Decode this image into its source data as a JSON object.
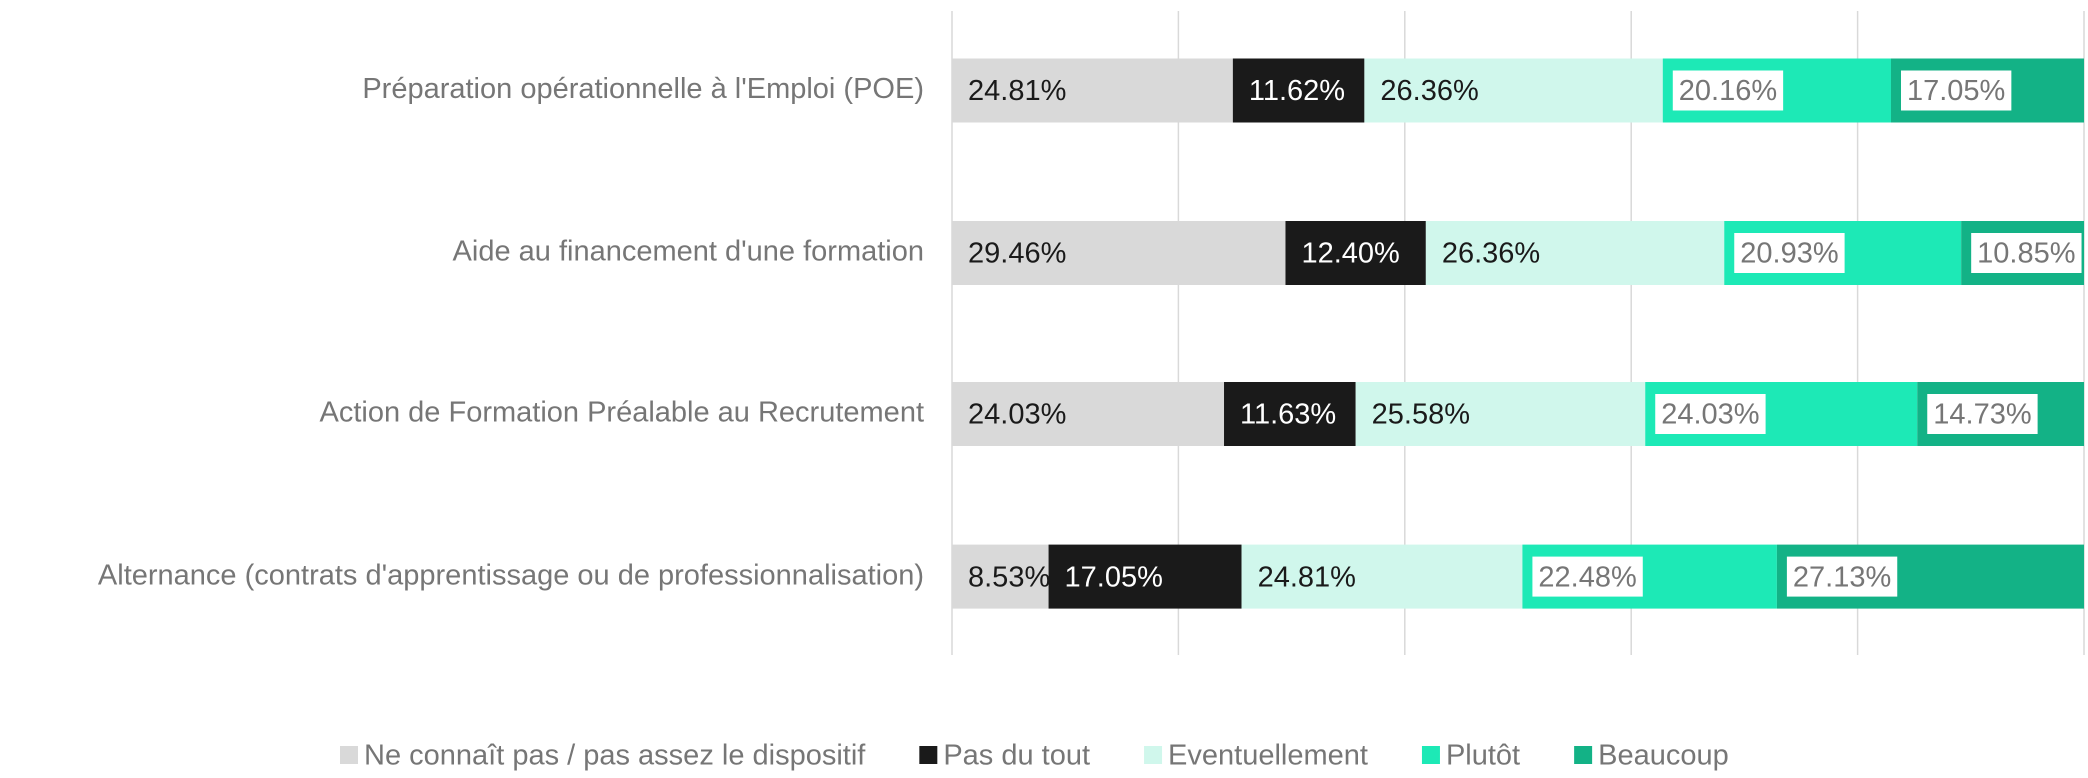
{
  "chart_data": {
    "type": "stacked-bar-horizontal",
    "categories": [
      "Préparation opérationnelle à l'Emploi (POE)",
      "Aide au financement d'une formation",
      "Action de Formation Préalable au Recrutement",
      "Alternance (contrats d'apprentissage ou de professionnalisation)"
    ],
    "series": [
      {
        "name": "Ne connaît pas / pas assez le dispositif",
        "color": "#d9d9d9",
        "values": [
          24.81,
          29.46,
          24.03,
          8.53
        ],
        "value_labels": [
          "24.81%",
          "29.46%",
          "24.03%",
          "8.53%"
        ]
      },
      {
        "name": "Pas du tout",
        "color": "#1a1a1a",
        "values": [
          11.62,
          12.4,
          11.63,
          17.05
        ],
        "value_labels": [
          "11.62%",
          "12.40%",
          "11.63%",
          "17.05%"
        ]
      },
      {
        "name": "Eventuellement",
        "color": "#d0f7ec",
        "values": [
          26.36,
          26.36,
          25.58,
          24.81
        ],
        "value_labels": [
          "26.36%",
          "26.36%",
          "25.58%",
          "24.81%"
        ]
      },
      {
        "name": "Plutôt",
        "color": "#1de9b6",
        "values": [
          20.16,
          20.93,
          24.03,
          22.48
        ],
        "value_labels": [
          "20.16%",
          "20.93%",
          "24.03%",
          "22.48%"
        ]
      },
      {
        "name": "Beaucoup",
        "color": "#13b286",
        "values": [
          17.05,
          10.85,
          14.73,
          27.13
        ],
        "value_labels": [
          "17.05%",
          "10.85%",
          "14.73%",
          "27.13%"
        ]
      }
    ],
    "xlim": [
      0,
      100
    ],
    "xticks": [
      0,
      20,
      40,
      60,
      80,
      100
    ],
    "grid": true,
    "legend": "bottom"
  }
}
